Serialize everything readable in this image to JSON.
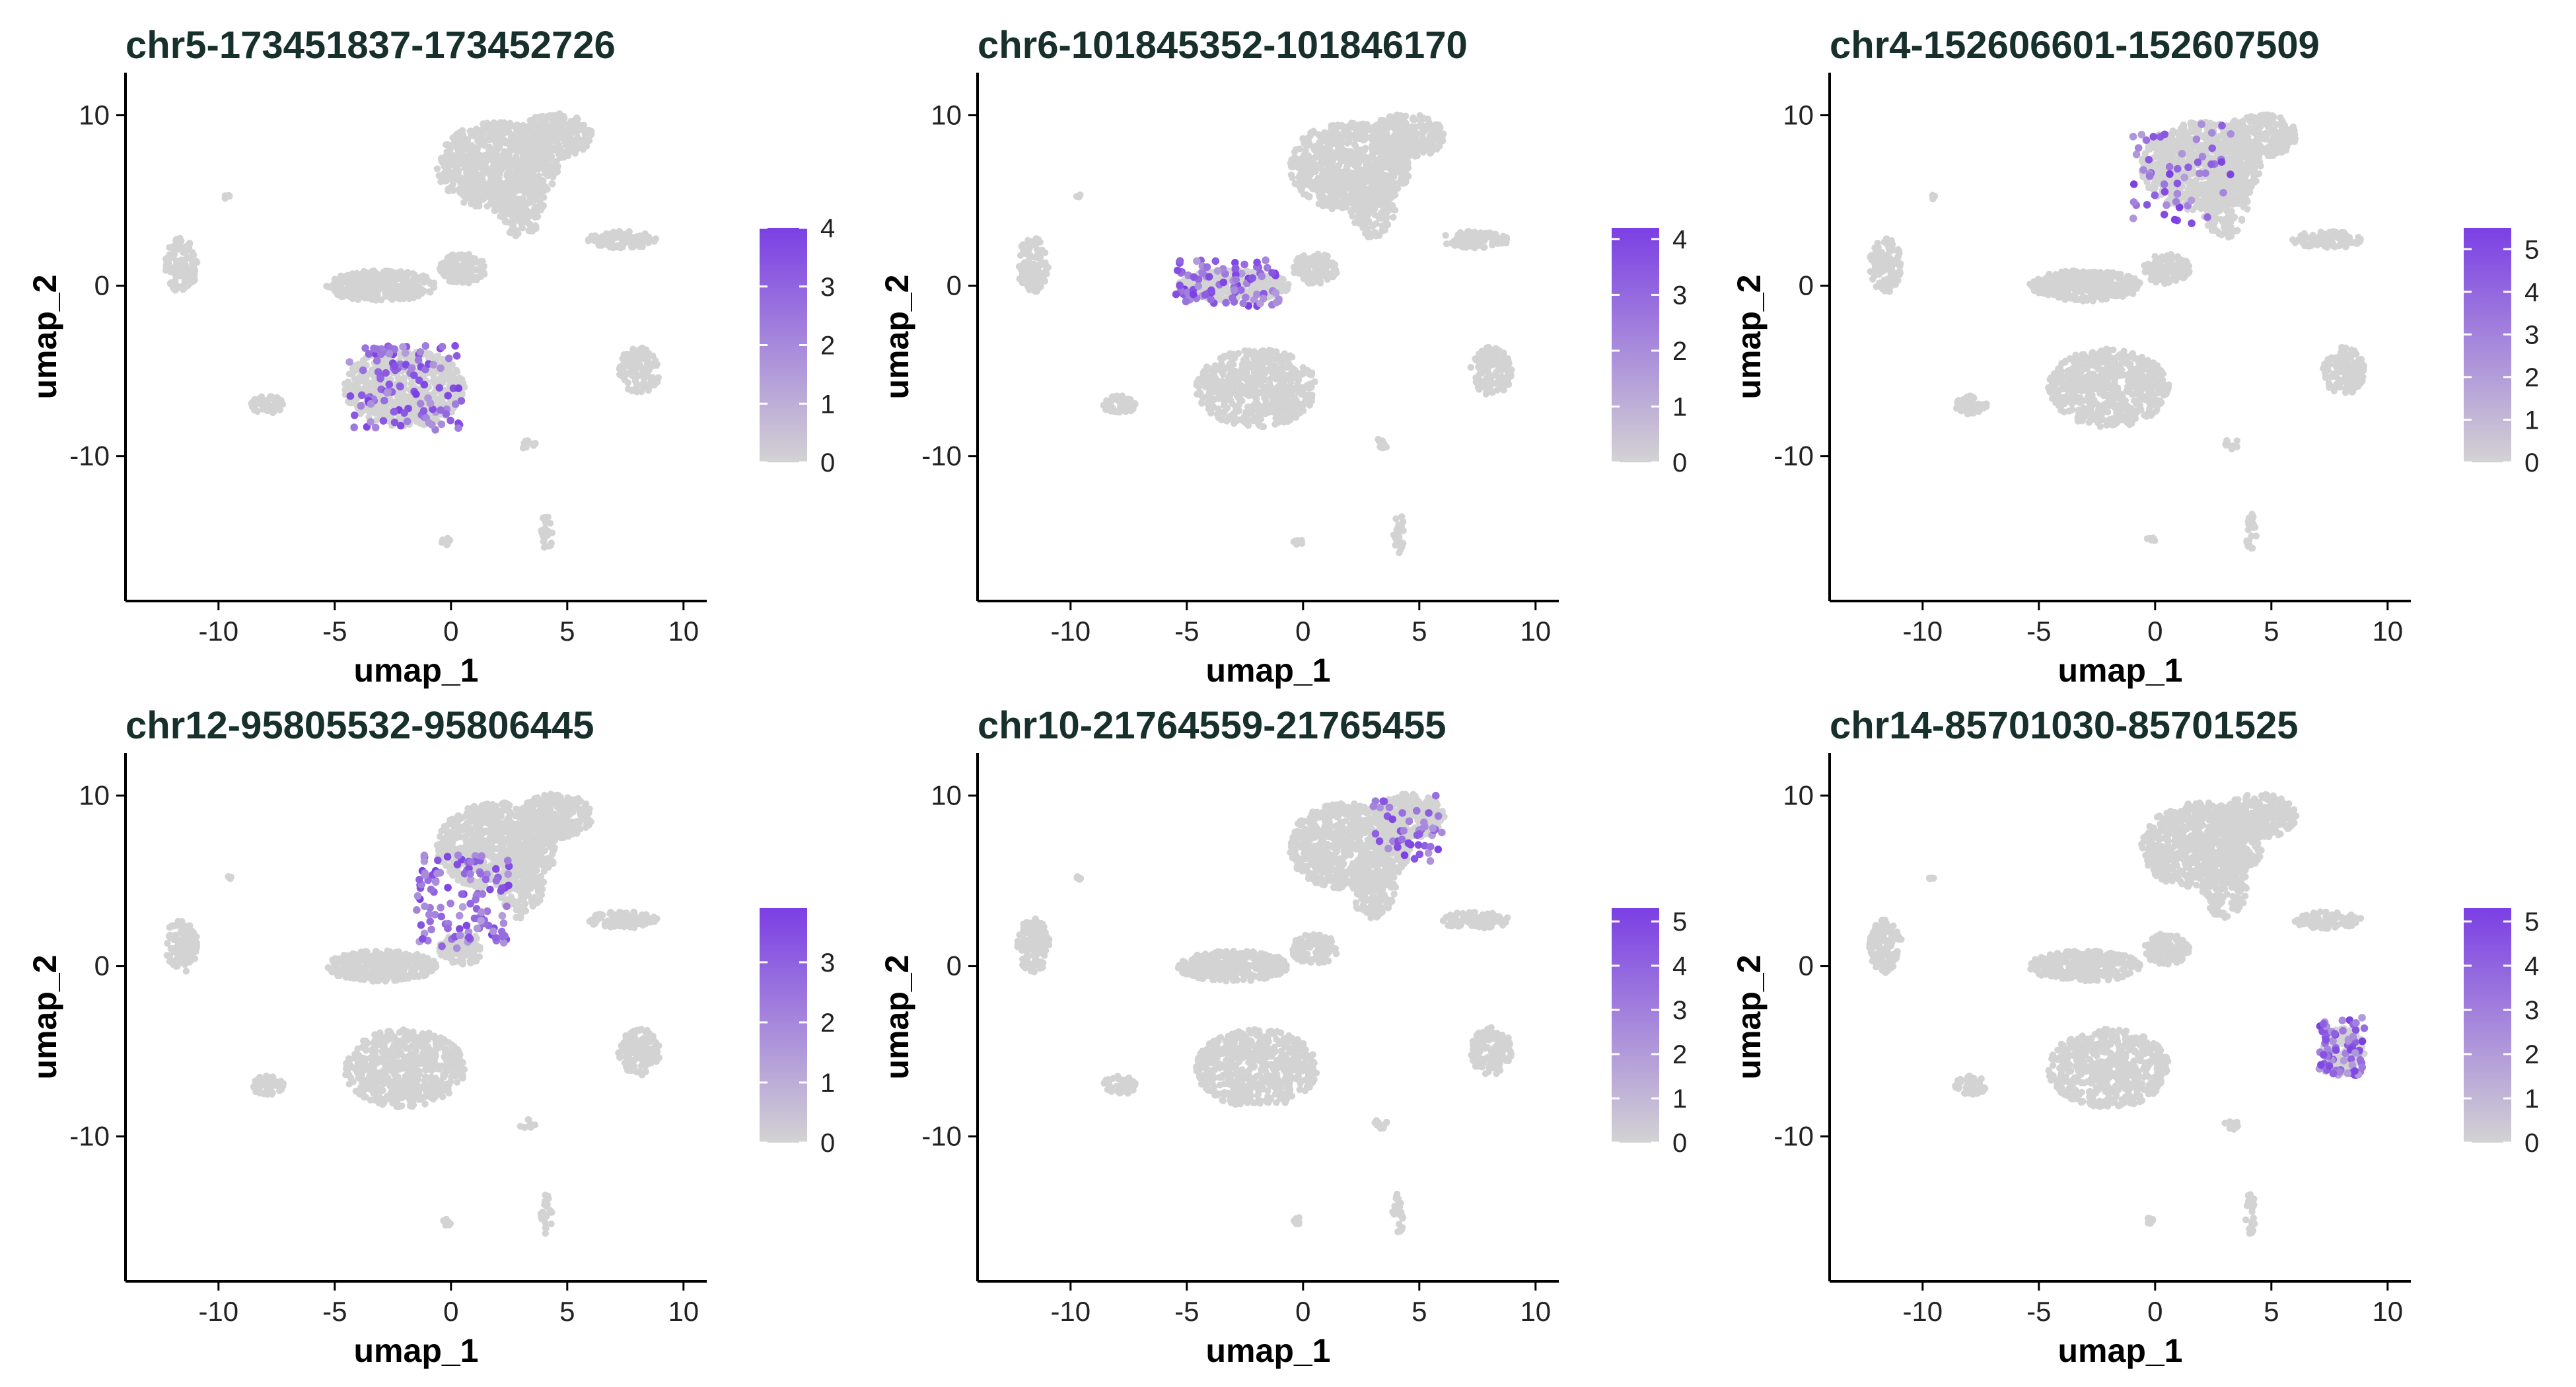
{
  "figure": {
    "axis_color": "#000000",
    "title_color": "#17302B",
    "point_color": "#D3D3D3",
    "low_color": "#D3D3D3",
    "high_color": "#7B3FE4",
    "xlabel": "umap_1",
    "ylabel": "umap_2",
    "xlim": [
      -14,
      11
    ],
    "ylim": [
      -18.5,
      12.5
    ],
    "x_ticks": [
      -10,
      -5,
      0,
      5,
      10
    ],
    "y_ticks": [
      10,
      0,
      -10
    ],
    "x_tick_labels": [
      "-10",
      "-5",
      "0",
      "5",
      "10"
    ],
    "y_tick_labels": [
      "10",
      "0",
      "-10"
    ]
  },
  "chart_data": [
    {
      "type": "scatter",
      "title": "chr5-173451837-173452726",
      "xlabel": "umap_1",
      "ylabel": "umap_2",
      "xlim": [
        -14,
        11
      ],
      "ylim": [
        -18.5,
        12.5
      ],
      "color_scale": {
        "min": 0,
        "max": 4,
        "ticks": [
          0,
          1,
          2,
          3,
          4
        ],
        "tick_labels": [
          "0",
          "1",
          "2",
          "3",
          "4"
        ]
      },
      "highlight": {
        "description": "expression enriched in lower-middle cluster",
        "region": {
          "x": [
            -4.5,
            0.5
          ],
          "y": [
            -8.5,
            -3.5
          ]
        },
        "count": 110
      }
    },
    {
      "type": "scatter",
      "title": "chr6-101845352-101846170",
      "xlabel": "umap_1",
      "ylabel": "umap_2",
      "xlim": [
        -14,
        11
      ],
      "ylim": [
        -18.5,
        12.5
      ],
      "color_scale": {
        "min": 0,
        "max": 4.2,
        "ticks": [
          0,
          1,
          2,
          3,
          4
        ],
        "tick_labels": [
          "0",
          "1",
          "2",
          "3",
          "4"
        ]
      },
      "highlight": {
        "description": "expression enriched at left tip of middle band",
        "region": {
          "x": [
            -5.5,
            -1.0
          ],
          "y": [
            -1.2,
            1.5
          ]
        },
        "count": 90
      }
    },
    {
      "type": "scatter",
      "title": "chr4-152606601-152607509",
      "xlabel": "umap_1",
      "ylabel": "umap_2",
      "xlim": [
        -14,
        11
      ],
      "ylim": [
        -18.5,
        12.5
      ],
      "color_scale": {
        "min": 0,
        "max": 5.5,
        "ticks": [
          0,
          1,
          2,
          3,
          4,
          5
        ],
        "tick_labels": [
          "0",
          "1",
          "2",
          "3",
          "4",
          "5"
        ]
      },
      "highlight": {
        "description": "sparse expression in upper cluster",
        "region": {
          "x": [
            -1.0,
            3.5
          ],
          "y": [
            3.5,
            9.5
          ]
        },
        "count": 55
      }
    },
    {
      "type": "scatter",
      "title": "chr12-95805532-95806445",
      "xlabel": "umap_1",
      "ylabel": "umap_2",
      "xlim": [
        -14,
        11
      ],
      "ylim": [
        -18.5,
        12.5
      ],
      "color_scale": {
        "min": 0,
        "max": 3.9,
        "ticks": [
          0,
          1,
          2,
          3
        ],
        "tick_labels": [
          "0",
          "1",
          "2",
          "3"
        ]
      },
      "highlight": {
        "description": "expression in lower-left of upper cluster",
        "region": {
          "x": [
            -1.5,
            2.5
          ],
          "y": [
            1.0,
            6.5
          ]
        },
        "count": 120
      }
    },
    {
      "type": "scatter",
      "title": "chr10-21764559-21765455",
      "xlabel": "umap_1",
      "ylabel": "umap_2",
      "xlim": [
        -14,
        11
      ],
      "ylim": [
        -18.5,
        12.5
      ],
      "color_scale": {
        "min": 0,
        "max": 5.3,
        "ticks": [
          0,
          1,
          2,
          3,
          4,
          5
        ],
        "tick_labels": [
          "0",
          "1",
          "2",
          "3",
          "4",
          "5"
        ]
      },
      "highlight": {
        "description": "expression in upper-right lobe",
        "region": {
          "x": [
            3.0,
            6.0
          ],
          "y": [
            6.0,
            10.0
          ]
        },
        "count": 45
      }
    },
    {
      "type": "scatter",
      "title": "chr14-85701030-85701525",
      "xlabel": "umap_1",
      "ylabel": "umap_2",
      "xlim": [
        -14,
        11
      ],
      "ylim": [
        -18.5,
        12.5
      ],
      "color_scale": {
        "min": 0,
        "max": 5.3,
        "ticks": [
          0,
          1,
          2,
          3,
          4,
          5
        ],
        "tick_labels": [
          "0",
          "1",
          "2",
          "3",
          "4",
          "5"
        ]
      },
      "highlight": {
        "description": "expression in right-middle cluster",
        "region": {
          "x": [
            7.0,
            9.0
          ],
          "y": [
            -6.5,
            -3.0
          ]
        },
        "count": 70
      }
    }
  ]
}
